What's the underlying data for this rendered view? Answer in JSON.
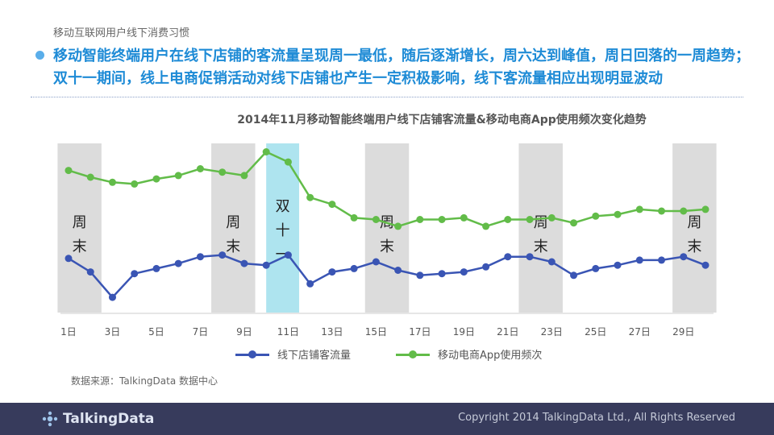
{
  "header": {
    "breadcrumb": "移动互联网用户线下消费习惯",
    "headline": "移动智能终端用户在线下店铺的客流量呈现周一最低，随后逐渐增长，周六达到峰值，周日回落的一周趋势；双十一期间，线上电商促销活动对线下店铺也产生一定积极影响，线下客流量相应出现明显波动"
  },
  "chart_data": {
    "type": "line",
    "title": "2014年11月移动智能终端用户线下店铺客流量&移动电商App使用频次变化趋势",
    "x": [
      1,
      2,
      3,
      4,
      5,
      6,
      7,
      8,
      9,
      10,
      11,
      12,
      13,
      14,
      15,
      16,
      17,
      18,
      19,
      20,
      21,
      22,
      23,
      24,
      25,
      26,
      27,
      28,
      29,
      30
    ],
    "x_tick_labels": [
      "1日",
      "3日",
      "5日",
      "7日",
      "9日",
      "11日",
      "13日",
      "15日",
      "17日",
      "19日",
      "21日",
      "23日",
      "25日",
      "27日",
      "29日"
    ],
    "ylim": [
      0,
      100
    ],
    "grid": false,
    "legend_position": "bottom",
    "series": [
      {
        "name": "线下店铺客流量",
        "color": "#3a55b4",
        "values": [
          32,
          24,
          9,
          23,
          26,
          29,
          33,
          34,
          29,
          28,
          34,
          17,
          24,
          26,
          30,
          25,
          22,
          23,
          24,
          27,
          33,
          33,
          30,
          22,
          26,
          28,
          31,
          31,
          33,
          28
        ]
      },
      {
        "name": "移动电商App使用频次",
        "color": "#62bc49",
        "values": [
          84,
          80,
          77,
          76,
          79,
          81,
          85,
          83,
          81,
          95,
          89,
          68,
          64,
          56,
          55,
          51,
          55,
          55,
          56,
          51,
          55,
          55,
          56,
          53,
          57,
          58,
          61,
          60,
          60,
          61
        ]
      }
    ],
    "bands": [
      {
        "label": "周末",
        "from": 0.5,
        "to": 2.5,
        "color": "#dcdcdc"
      },
      {
        "label": "周末",
        "from": 7.5,
        "to": 9.5,
        "color": "#dcdcdc"
      },
      {
        "label": "双十一",
        "from": 10.0,
        "to": 11.5,
        "color": "#aee4ef"
      },
      {
        "label": "周末",
        "from": 14.5,
        "to": 16.5,
        "color": "#dcdcdc"
      },
      {
        "label": "周末",
        "from": 21.5,
        "to": 23.5,
        "color": "#dcdcdc"
      },
      {
        "label": "周末",
        "from": 28.5,
        "to": 30.5,
        "color": "#dcdcdc"
      }
    ]
  },
  "source": "数据来源：TalkingData 数据中心",
  "footer": {
    "logo": "TalkingData",
    "copyright": "Copyright 2014 TalkingData Ltd., All Rights Reserved"
  }
}
